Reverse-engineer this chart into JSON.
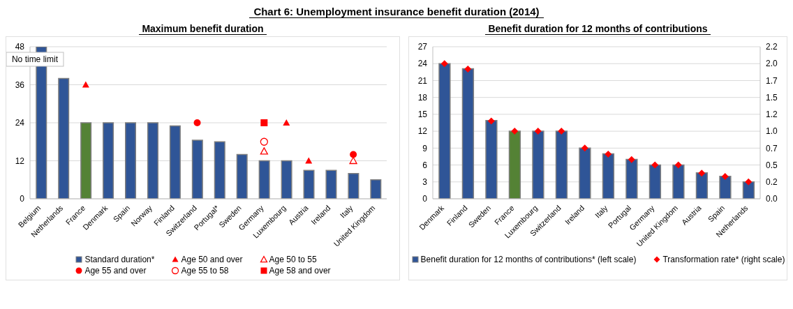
{
  "chart_data": [
    {
      "type": "bar",
      "title": "Chart 6: Unemployment insurance benefit duration (2014)",
      "subtitle": "Maximum benefit duration",
      "categories": [
        "Belgium",
        "Netherlands",
        "France",
        "Denmark",
        "Spain",
        "Norway",
        "Finland",
        "Switzerland",
        "Portugal*",
        "Sweden",
        "Germany",
        "Luxembourg",
        "Austria",
        "Ireland",
        "Italy",
        "United Kingdom"
      ],
      "series": [
        {
          "name": "Standard duration*",
          "color": "#2f5597",
          "colors": [
            "#2f5597",
            "#2f5597",
            "#548235",
            "#2f5597",
            "#2f5597",
            "#2f5597",
            "#2f5597",
            "#2f5597",
            "#2f5597",
            "#2f5597",
            "#2f5597",
            "#2f5597",
            "#2f5597",
            "#2f5597",
            "#2f5597",
            "#2f5597"
          ],
          "values": [
            48,
            38,
            24,
            24,
            24,
            24,
            23,
            18.5,
            18,
            14,
            12,
            12,
            9,
            9,
            8,
            6
          ]
        },
        {
          "name": "Age 50 and over",
          "type": "scatter",
          "marker": "triangle",
          "color": "#ff0000",
          "x": [
            "France",
            "Luxembourg",
            "Austria"
          ],
          "values": [
            36,
            24,
            12
          ]
        },
        {
          "name": "Age 50 to 55",
          "type": "scatter",
          "marker": "triangle-open",
          "color": "#ff0000",
          "x": [
            "Germany",
            "Italy"
          ],
          "values": [
            15,
            12
          ]
        },
        {
          "name": "Age 55 and over",
          "type": "scatter",
          "marker": "circle",
          "color": "#ff0000",
          "x": [
            "Switzerland",
            "Italy"
          ],
          "values": [
            24,
            14
          ]
        },
        {
          "name": "Age 55 to 58",
          "type": "scatter",
          "marker": "circle-open",
          "color": "#ff0000",
          "x": [
            "Germany"
          ],
          "values": [
            18
          ]
        },
        {
          "name": "Age 58 and over",
          "type": "scatter",
          "marker": "square",
          "color": "#ff0000",
          "x": [
            "Germany"
          ],
          "values": [
            24
          ]
        }
      ],
      "ylim": [
        0,
        48
      ],
      "yticks": [
        0,
        12,
        24,
        36,
        48
      ],
      "grid": "y",
      "legend": "bottom",
      "annotations": [
        {
          "text": "No time limit",
          "x": "Belgium",
          "y": 48
        }
      ]
    },
    {
      "type": "bar",
      "title": "Benefit duration for 12 months of contributions",
      "categories": [
        "Denmark",
        "Finland",
        "Sweden",
        "France",
        "Luxembourg",
        "Switzerland",
        "Ireland",
        "Italy",
        "Portugal",
        "Germany",
        "United Kingdom",
        "Austria",
        "Spain",
        "Netherlands"
      ],
      "series": [
        {
          "name": "Benefit duration for 12 months of contributions* (left scale)",
          "color": "#2f5597",
          "colors": [
            "#2f5597",
            "#2f5597",
            "#2f5597",
            "#548235",
            "#2f5597",
            "#2f5597",
            "#2f5597",
            "#2f5597",
            "#2f5597",
            "#2f5597",
            "#2f5597",
            "#2f5597",
            "#2f5597",
            "#2f5597"
          ],
          "values": [
            24,
            23.1,
            13.9,
            12,
            12,
            12,
            9,
            8,
            7,
            6,
            6,
            4.6,
            4,
            3
          ]
        },
        {
          "name": "Transformation rate* (right scale)",
          "type": "scatter",
          "marker": "diamond",
          "axis": "y2",
          "color": "#ff0000",
          "x": [
            "Denmark",
            "Finland",
            "Sweden",
            "France",
            "Luxembourg",
            "Switzerland",
            "Ireland",
            "Italy",
            "Portugal",
            "Germany",
            "United Kingdom",
            "Austria",
            "Spain",
            "Netherlands"
          ],
          "values": [
            2.0,
            1.92,
            1.15,
            1.0,
            1.0,
            1.0,
            0.75,
            0.66,
            0.58,
            0.5,
            0.5,
            0.38,
            0.33,
            0.25
          ]
        }
      ],
      "ylim": [
        0,
        27
      ],
      "yticks": [
        0,
        3,
        6,
        9,
        12,
        15,
        18,
        21,
        24,
        27
      ],
      "y2lim": [
        0,
        2.25
      ],
      "y2ticks": [
        "0.0",
        {
          "value": 0.25,
          "label": "0.2"
        },
        {
          "value": 0.5,
          "label": "0.5"
        },
        {
          "value": 0.75,
          "label": "0.7"
        },
        {
          "value": 1.0,
          "label": "1.0"
        },
        {
          "value": 1.25,
          "label": "1.2"
        },
        {
          "value": 1.5,
          "label": "1.5"
        },
        {
          "value": 1.75,
          "label": "1.7"
        },
        {
          "value": 2.0,
          "label": "2.0"
        },
        {
          "value": 2.25,
          "label": "2.2"
        }
      ],
      "grid": "y",
      "legend": "bottom"
    }
  ]
}
